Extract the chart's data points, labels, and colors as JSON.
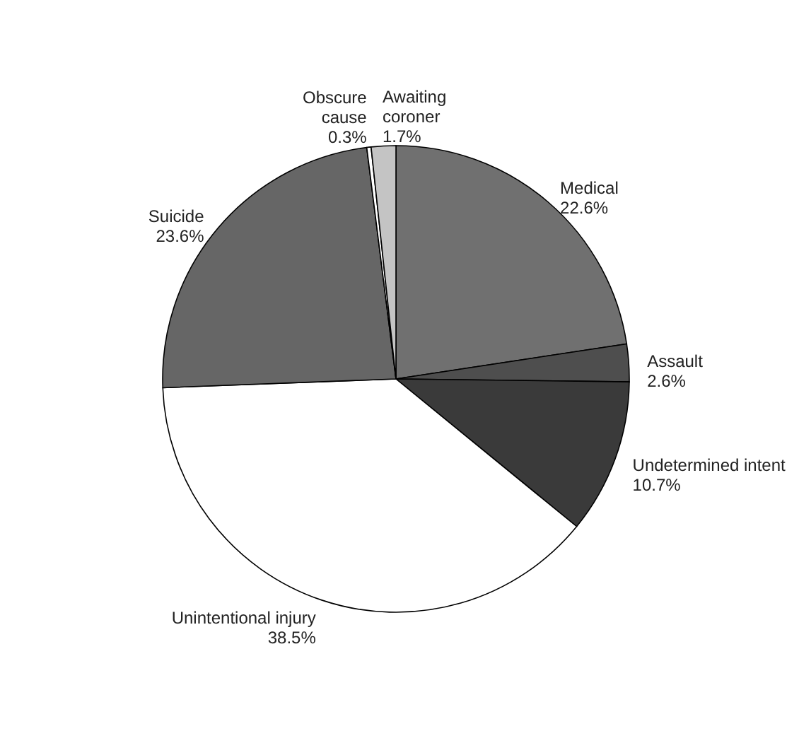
{
  "chart_data": {
    "type": "pie",
    "categories": [
      "Medical",
      "Assault",
      "Undetermined intent",
      "Unintentional injury",
      "Suicide",
      "Obscure cause",
      "Awaiting coroner"
    ],
    "values": [
      22.6,
      2.6,
      10.7,
      38.5,
      23.6,
      0.3,
      1.7
    ],
    "value_labels": [
      "22.6%",
      "2.6%",
      "10.7%",
      "38.5%",
      "23.6%",
      "0.3%",
      "1.7%"
    ],
    "colors": [
      "#707070",
      "#4e4e4e",
      "#3a3a3a",
      "#ffffff",
      "#666666",
      "#ffffff",
      "#c4c4c4"
    ]
  }
}
